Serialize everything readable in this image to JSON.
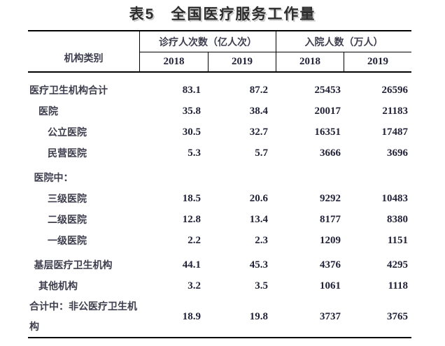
{
  "title": "表5　全国医疗服务工作量",
  "table": {
    "header": {
      "category_label": "机构类别",
      "groups": [
        {
          "label": "诊疗人次数（亿人次）",
          "years": [
            "2018",
            "2019"
          ]
        },
        {
          "label": "入院人数（万人）",
          "years": [
            "2018",
            "2019"
          ]
        }
      ]
    },
    "rows": [
      {
        "label": "医疗卫生机构合计",
        "indent": 0,
        "section_start": false,
        "values": [
          "83.1",
          "87.2",
          "25453",
          "26596"
        ]
      },
      {
        "label": "医院",
        "indent": 1,
        "section_start": false,
        "values": [
          "35.8",
          "38.4",
          "20017",
          "21183"
        ]
      },
      {
        "label": "公立医院",
        "indent": 2,
        "section_start": false,
        "values": [
          "30.5",
          "32.7",
          "16351",
          "17487"
        ]
      },
      {
        "label": "民营医院",
        "indent": 2,
        "section_start": false,
        "values": [
          "5.3",
          "5.7",
          "3666",
          "3696"
        ]
      },
      {
        "label": "医院中：",
        "indent": 0.5,
        "section_start": true,
        "values": [
          "",
          "",
          "",
          ""
        ]
      },
      {
        "label": "三级医院",
        "indent": 2,
        "section_start": false,
        "values": [
          "18.5",
          "20.6",
          "9292",
          "10483"
        ]
      },
      {
        "label": "二级医院",
        "indent": 2,
        "section_start": false,
        "values": [
          "12.8",
          "13.4",
          "8177",
          "8380"
        ]
      },
      {
        "label": "一级医院",
        "indent": 2,
        "section_start": false,
        "values": [
          "2.2",
          "2.3",
          "1209",
          "1151"
        ]
      },
      {
        "label": "基层医疗卫生机构",
        "indent": 0.5,
        "section_start": true,
        "values": [
          "44.1",
          "45.3",
          "4376",
          "4295"
        ]
      },
      {
        "label": "其他机构",
        "indent": 1,
        "section_start": false,
        "values": [
          "3.2",
          "3.5",
          "1061",
          "1118"
        ]
      },
      {
        "label": "合计中：非公医疗卫生机构",
        "indent": 0,
        "section_start": false,
        "values": [
          "18.9",
          "19.8",
          "3737",
          "3765"
        ]
      }
    ]
  },
  "colors": {
    "background": "#ffffff",
    "border": "#000000",
    "title_text": "#2d2d2d",
    "title_shadow": "#cccccc",
    "label_text": "#3e3e4e",
    "number_text": "#222238"
  }
}
